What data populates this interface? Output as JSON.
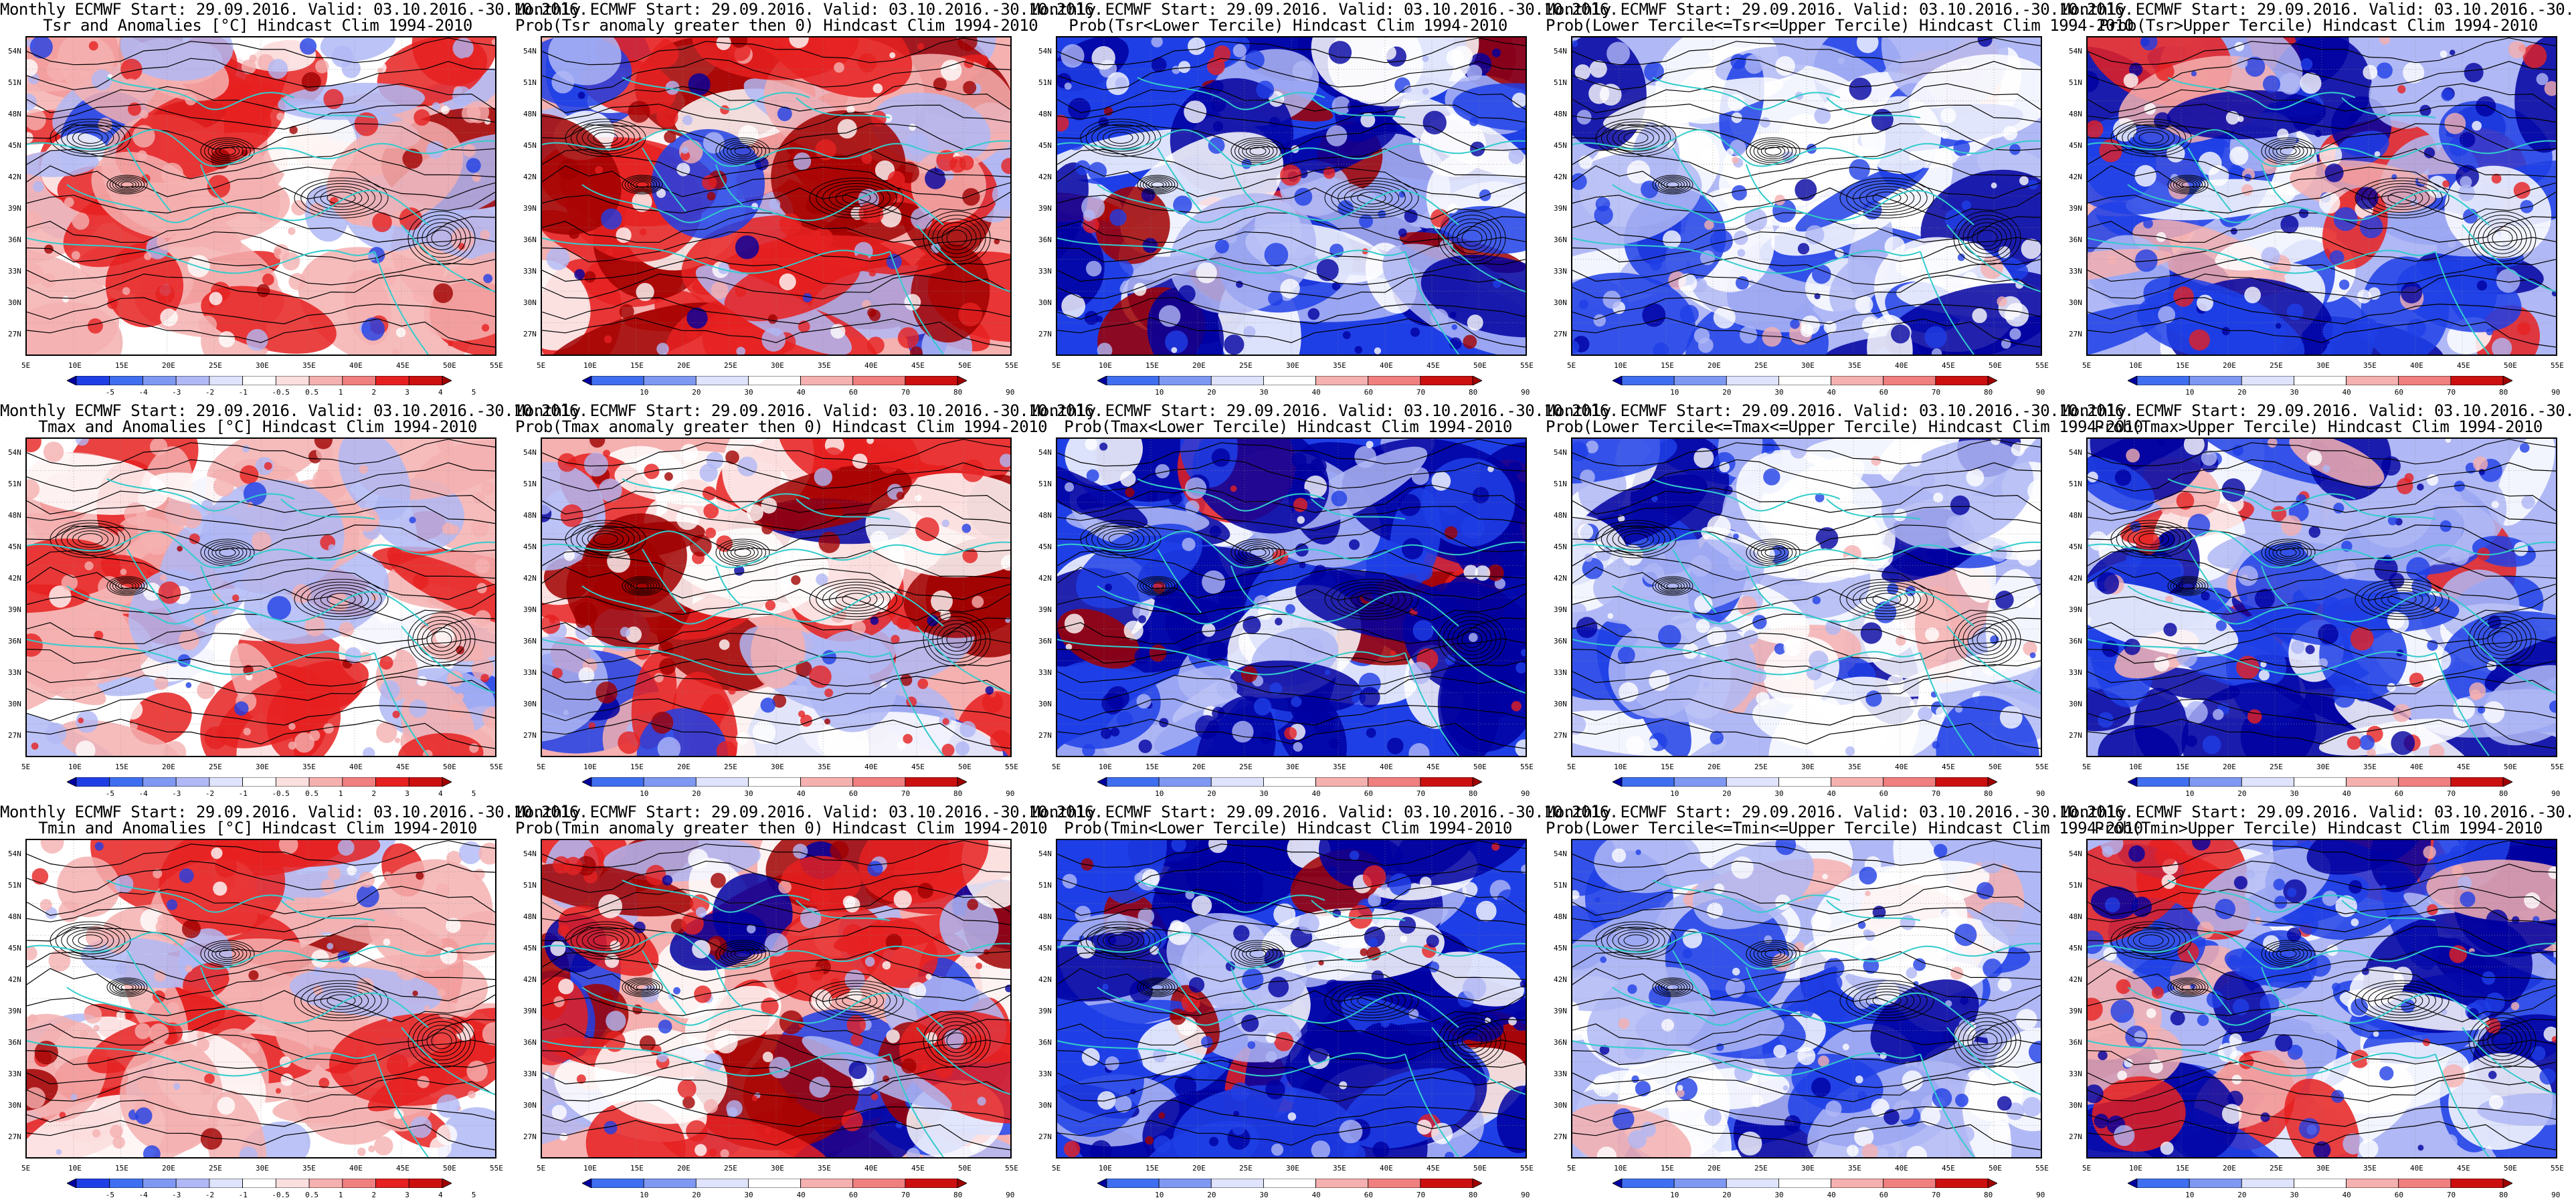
{
  "row_titles": {
    "tsr": "Tsr and Anomalies [°C] Hindcast Clim 1994-2010",
    "tmax": "Tmax and Anomalies [°C] Hindcast Clim 1994-2010",
    "tmin": "Tmin and Anomalies [°C] Hindcast Clim 1994-2010"
  },
  "header_line": "Monthly ECMWF Start: 29.09.2016. Valid: 03.10.2016.-30.10.2016.",
  "panels": [
    {
      "t2": "Tsr and Anomalies [°C] Hindcast Clim 1994-2010",
      "kind": "anom"
    },
    {
      "t2": "Prob(Tsr anomaly greater then 0) Hindcast Clim 1994-2010",
      "kind": "prob_warm"
    },
    {
      "t2": "Prob(Tsr<Lower Tercile) Hindcast Clim 1994-2010",
      "kind": "prob_cold"
    },
    {
      "t2": "Prob(Lower Tercile<=Tsr<=Upper Tercile) Hindcast Clim 1994-2010",
      "kind": "prob_mid"
    },
    {
      "t2": "Prob(Tsr>Upper Tercile) Hindcast Clim 1994-2010",
      "kind": "prob_up"
    },
    {
      "t2": "Tmax and Anomalies [°C] Hindcast Clim 1994-2010",
      "kind": "anom"
    },
    {
      "t2": "Prob(Tmax anomaly greater then 0) Hindcast Clim 1994-2010",
      "kind": "prob_warm"
    },
    {
      "t2": "Prob(Tmax<Lower Tercile) Hindcast Clim 1994-2010",
      "kind": "prob_cold"
    },
    {
      "t2": "Prob(Lower Tercile<=Tmax<=Upper Tercile) Hindcast Clim 1994-2010",
      "kind": "prob_mid"
    },
    {
      "t2": "Prob(Tmax>Upper Tercile) Hindcast Clim 1994-2010",
      "kind": "prob_up"
    },
    {
      "t2": "Tmin and Anomalies [°C] Hindcast Clim 1994-2010",
      "kind": "anom"
    },
    {
      "t2": "Prob(Tmin anomaly greater then 0) Hindcast Clim 1994-2010",
      "kind": "prob_warm"
    },
    {
      "t2": "Prob(Tmin<Lower Tercile) Hindcast Clim 1994-2010",
      "kind": "prob_cold"
    },
    {
      "t2": "Prob(Lower Tercile<=Tmin<=Upper Tercile) Hindcast Clim 1994-2010",
      "kind": "prob_mid"
    },
    {
      "t2": "Prob(Tmin>Upper Tercile) Hindcast Clim 1994-2010",
      "kind": "prob_up"
    }
  ],
  "lat_labels": [
    "54N",
    "51N",
    "48N",
    "45N",
    "42N",
    "39N",
    "36N",
    "33N",
    "30N",
    "27N"
  ],
  "lon_labels": [
    "5E",
    "10E",
    "15E",
    "20E",
    "25E",
    "30E",
    "35E",
    "40E",
    "45E",
    "50E",
    "55E"
  ],
  "anom_ticks": [
    "-5",
    "-4",
    "-3",
    "-2",
    "-1",
    "-0.5",
    "0.5",
    "1",
    "2",
    "3",
    "4",
    "5"
  ],
  "prob_ticks": [
    "10",
    "20",
    "30",
    "40",
    "60",
    "70",
    "80",
    "90"
  ],
  "colors": {
    "coast": "#33cccc",
    "contour": "#000000",
    "deep_blue": "#0000a0",
    "blue": "#1f3fe6",
    "light_blue": "#b0b8f5",
    "white": "#ffffff",
    "light_red": "#f5b0b0",
    "red": "#e62020",
    "deep_red": "#a00000"
  }
}
